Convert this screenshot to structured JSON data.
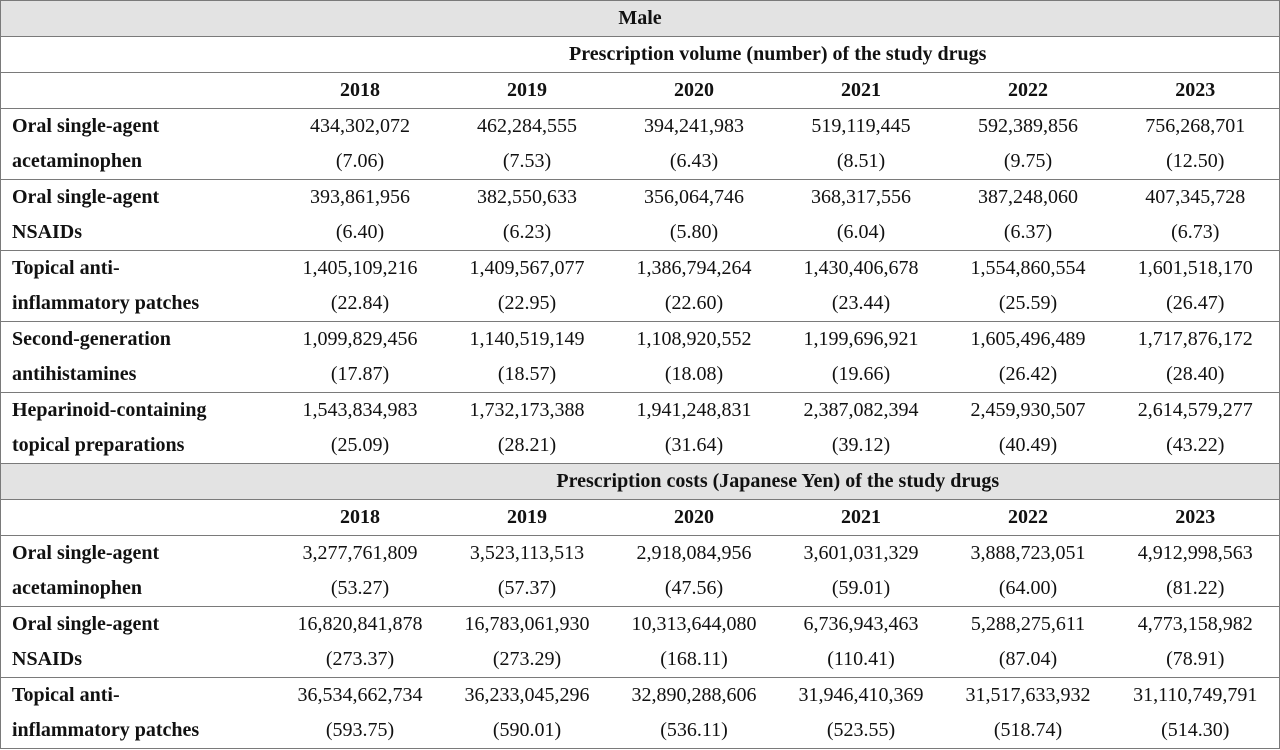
{
  "title": "Male",
  "sections": [
    {
      "heading": "Prescription volume (number) of the study drugs",
      "years": [
        "2018",
        "2019",
        "2020",
        "2021",
        "2022",
        "2023"
      ],
      "rows": [
        {
          "label_line1": "Oral single-agent",
          "label_line2": "acetaminophen",
          "values": [
            "434,302,072",
            "462,284,555",
            "394,241,983",
            "519,119,445",
            "592,389,856",
            "756,268,701"
          ],
          "pcts": [
            "(7.06)",
            "(7.53)",
            "(6.43)",
            "(8.51)",
            "(9.75)",
            "(12.50)"
          ]
        },
        {
          "label_line1": "Oral single-agent",
          "label_line2": "NSAIDs",
          "values": [
            "393,861,956",
            "382,550,633",
            "356,064,746",
            "368,317,556",
            "387,248,060",
            "407,345,728"
          ],
          "pcts": [
            "(6.40)",
            "(6.23)",
            "(5.80)",
            "(6.04)",
            "(6.37)",
            "(6.73)"
          ]
        },
        {
          "label_line1": "Topical anti-",
          "label_line2": "inflammatory patches",
          "values": [
            "1,405,109,216",
            "1,409,567,077",
            "1,386,794,264",
            "1,430,406,678",
            "1,554,860,554",
            "1,601,518,170"
          ],
          "pcts": [
            "(22.84)",
            "(22.95)",
            "(22.60)",
            "(23.44)",
            "(25.59)",
            "(26.47)"
          ]
        },
        {
          "label_line1": "Second-generation",
          "label_line2": "antihistamines",
          "values": [
            "1,099,829,456",
            "1,140,519,149",
            "1,108,920,552",
            "1,199,696,921",
            "1,605,496,489",
            "1,717,876,172"
          ],
          "pcts": [
            "(17.87)",
            "(18.57)",
            "(18.08)",
            "(19.66)",
            "(26.42)",
            "(28.40)"
          ]
        },
        {
          "label_line1": "Heparinoid-containing",
          "label_line2": "topical preparations",
          "values": [
            "1,543,834,983",
            "1,732,173,388",
            "1,941,248,831",
            "2,387,082,394",
            "2,459,930,507",
            "2,614,579,277"
          ],
          "pcts": [
            "(25.09)",
            "(28.21)",
            "(31.64)",
            "(39.12)",
            "(40.49)",
            "(43.22)"
          ]
        }
      ]
    },
    {
      "heading": "Prescription costs (Japanese Yen) of the study drugs",
      "years": [
        "2018",
        "2019",
        "2020",
        "2021",
        "2022",
        "2023"
      ],
      "rows": [
        {
          "label_line1": "Oral single-agent",
          "label_line2": "acetaminophen",
          "values": [
            "3,277,761,809",
            "3,523,113,513",
            "2,918,084,956",
            "3,601,031,329",
            "3,888,723,051",
            "4,912,998,563"
          ],
          "pcts": [
            "(53.27)",
            "(57.37)",
            "(47.56)",
            "(59.01)",
            "(64.00)",
            "(81.22)"
          ]
        },
        {
          "label_line1": "Oral single-agent",
          "label_line2": "NSAIDs",
          "values": [
            "16,820,841,878",
            "16,783,061,930",
            "10,313,644,080",
            "6,736,943,463",
            "5,288,275,611",
            "4,773,158,982"
          ],
          "pcts": [
            "(273.37)",
            "(273.29)",
            "(168.11)",
            "(110.41)",
            "(87.04)",
            "(78.91)"
          ]
        },
        {
          "label_line1": "Topical anti-",
          "label_line2": "inflammatory patches",
          "values": [
            "36,534,662,734",
            "36,233,045,296",
            "32,890,288,606",
            "31,946,410,369",
            "31,517,633,932",
            "31,110,749,791"
          ],
          "pcts": [
            "(593.75)",
            "(590.01)",
            "(536.11)",
            "(523.55)",
            "(518.74)",
            "(514.30)"
          ]
        }
      ]
    }
  ]
}
